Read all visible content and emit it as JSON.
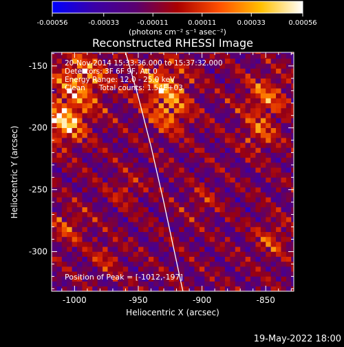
{
  "chart_data": {
    "type": "heatmap",
    "title": "Reconstructed RHESSI Image",
    "xlabel": "Heliocentric X (arcsec)",
    "ylabel": "Heliocentric Y (arcsec)",
    "xlim": [
      -1018,
      -828
    ],
    "ylim": [
      -332,
      -139
    ],
    "x_ticks": [
      "-1000",
      "-950",
      "-900",
      "-850"
    ],
    "x_tick_values": [
      -1000,
      -950,
      -900,
      -850
    ],
    "y_ticks": [
      "-150",
      "-200",
      "-250",
      "-300"
    ],
    "y_tick_values": [
      -150,
      -200,
      -250,
      -300
    ],
    "colorbar": {
      "ticks": [
        "-0.00056",
        "-0.00033",
        "-0.00011",
        "0.00011",
        "0.00033",
        "0.00056"
      ],
      "tick_values": [
        -0.00056,
        -0.00033,
        -0.00011,
        0.00011,
        0.00033,
        0.00056
      ],
      "range": [
        -0.00056,
        0.00056
      ],
      "unit_label": "(photons cm⁻² s⁻¹ asec⁻²)",
      "colors": [
        "#0000ff",
        "#3a00a8",
        "#5a0070",
        "#aa0000",
        "#ff5000",
        "#ffc000",
        "#ffffff"
      ]
    },
    "annotations": [
      "20-Nov-2014 15:33:36.000 to 15:37:32.000",
      "Detectors: 3F 6F 9F, Att 0",
      "Energy Range: 12.0 - 25.0 keV",
      "Clean      Total counts: 1.54E+03"
    ],
    "peak_label": "Position of Peak = [-1012,-197]",
    "peak_position": [
      -1012,
      -197
    ],
    "limb_curve": [
      [
        -960,
        -139
      ],
      [
        -950,
        -175
      ],
      [
        -940,
        -215
      ],
      [
        -930,
        -260
      ],
      [
        -915,
        -332
      ]
    ],
    "bright_regions": [
      {
        "x": -1008,
        "y": -195,
        "r": 18,
        "level": 1.0
      },
      {
        "x": -995,
        "y": -160,
        "r": 22,
        "level": 0.8
      },
      {
        "x": -930,
        "y": -165,
        "r": 20,
        "level": 0.75
      },
      {
        "x": -925,
        "y": -190,
        "r": 16,
        "level": 0.6
      },
      {
        "x": -850,
        "y": -175,
        "r": 18,
        "level": 0.65
      },
      {
        "x": -855,
        "y": -205,
        "r": 14,
        "level": 0.55
      },
      {
        "x": -845,
        "y": -290,
        "r": 14,
        "level": 0.5
      },
      {
        "x": -1005,
        "y": -280,
        "r": 14,
        "level": 0.5
      },
      {
        "x": -960,
        "y": -250,
        "r": 12,
        "level": 0.4
      },
      {
        "x": -900,
        "y": -260,
        "r": 12,
        "level": 0.35
      },
      {
        "x": -975,
        "y": -305,
        "r": 12,
        "level": 0.4
      }
    ]
  },
  "footer_date": "19-May-2022 18:00"
}
